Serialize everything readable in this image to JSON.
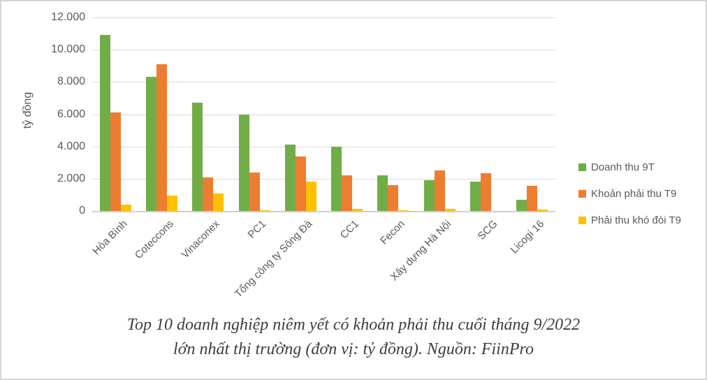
{
  "chart_data": {
    "type": "bar",
    "categories": [
      "Hòa Bình",
      "Coteccons",
      "Vinaconex",
      "PC1",
      "Tổng công ty Sông Đà",
      "CC1",
      "Fecon",
      "Xây dựng Hà Nội",
      "SCG",
      "Licogi 16"
    ],
    "series": [
      {
        "name": "Doanh thu 9T",
        "color": "#70AD47",
        "values": [
          10900,
          8300,
          6700,
          6000,
          4100,
          4000,
          2200,
          1900,
          1800,
          700
        ]
      },
      {
        "name": "Khoản phải thu T9",
        "color": "#ED7D31",
        "values": [
          6100,
          9100,
          2100,
          2400,
          3400,
          2200,
          1600,
          2500,
          2350,
          1550
        ]
      },
      {
        "name": "Phải thu khó đòi T9",
        "color": "#FFC000",
        "values": [
          400,
          950,
          1100,
          50,
          1800,
          150,
          50,
          150,
          0,
          100
        ]
      }
    ],
    "ylabel": "tỷ đồng",
    "xlabel": "",
    "ylim": [
      0,
      12000
    ],
    "ytick_step": 2000,
    "ytick_labels": [
      "0",
      "2.000",
      "4.000",
      "6.000",
      "8.000",
      "10.000",
      "12.000"
    ],
    "grid": true,
    "legend_position": "right"
  },
  "caption": {
    "line1": "Top 10 doanh nghiệp niêm yết có khoản phải thu cuối tháng 9/2022",
    "line2": "lớn nhất thị trường (đơn vị: tỷ đồng). Nguồn: FiinPro"
  },
  "colors": {
    "grid": "#D9D9D9",
    "axis_line": "#CFCFCF",
    "axis_text": "#595959",
    "caption_text": "#3D3D3D",
    "background": "#FFFFFF"
  }
}
